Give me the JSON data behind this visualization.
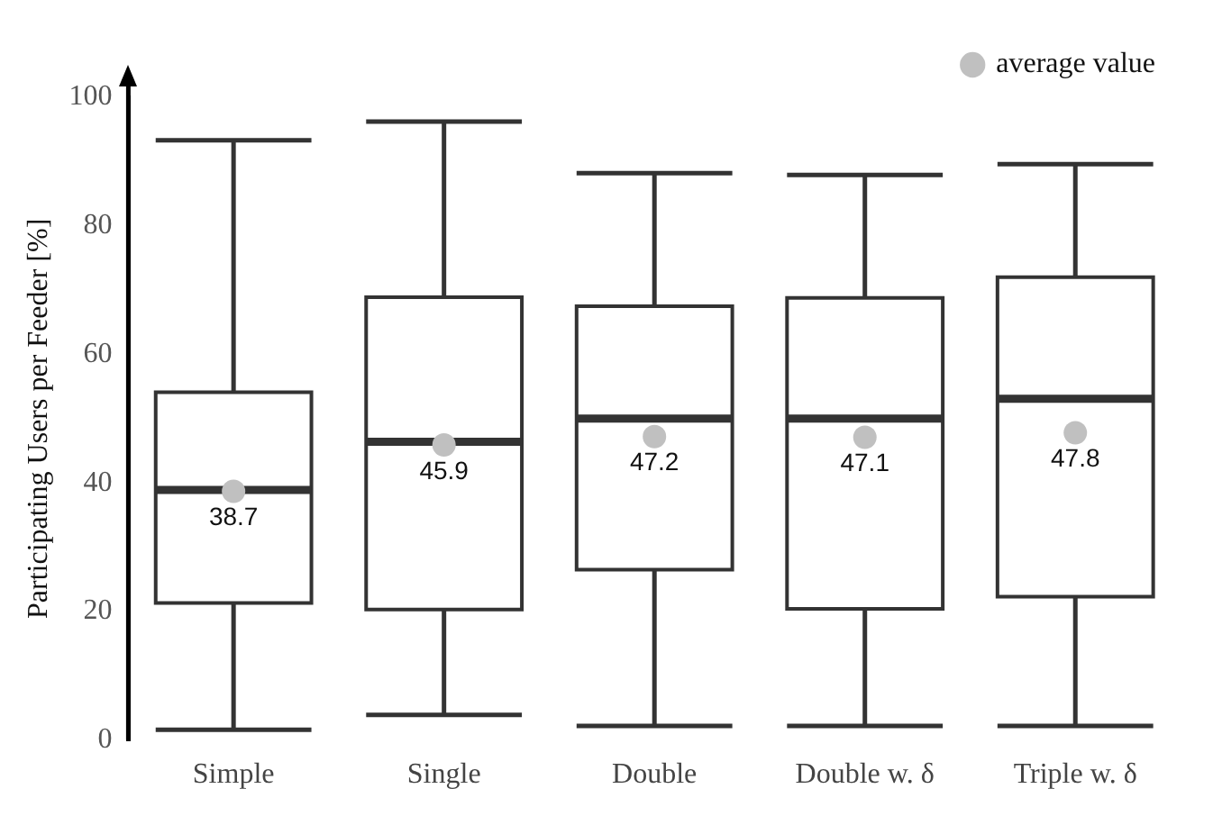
{
  "chart_data": {
    "type": "box",
    "ylabel": "Participating Users per Feeder [%]",
    "categories": [
      "Simple",
      "Single",
      "Double",
      "Double w. δ",
      "Triple w. δ"
    ],
    "boxes": [
      {
        "low": 1.6,
        "q1": 21.3,
        "median": 38.9,
        "q3": 54.1,
        "high": 93.3
      },
      {
        "low": 3.9,
        "q1": 20.3,
        "median": 46.4,
        "q3": 68.9,
        "high": 96.2
      },
      {
        "low": 2.2,
        "q1": 26.5,
        "median": 50,
        "q3": 67.5,
        "high": 88.2
      },
      {
        "low": 2.2,
        "q1": 20.4,
        "median": 50,
        "q3": 68.8,
        "high": 87.9
      },
      {
        "low": 2.2,
        "q1": 22.3,
        "median": 53.1,
        "q3": 72,
        "high": 89.6
      }
    ],
    "color": "#333333",
    "series": [
      {
        "type": "scatter",
        "name": "average value",
        "color": "#c0c0c0",
        "x": [
          "Simple",
          "Single",
          "Double",
          "Double w. δ",
          "Triple w. δ"
        ],
        "values": [
          38.7,
          45.9,
          47.2,
          47.1,
          47.8
        ],
        "value_labels": [
          "38.7",
          "45.9",
          "47.2",
          "47.1",
          "47.8"
        ]
      }
    ],
    "ylim": [
      0,
      100
    ],
    "yticks": [
      0,
      20,
      40,
      60,
      80,
      100
    ],
    "grid": false,
    "legend": "top right",
    "marker": "circle"
  }
}
